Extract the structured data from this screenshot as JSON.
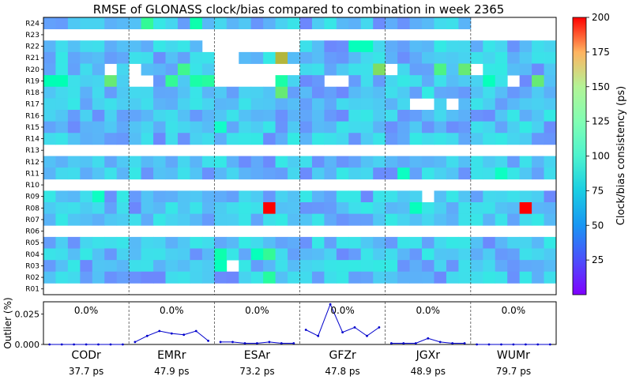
{
  "chart_data": [
    {
      "type": "heatmap",
      "title": "RMSE of GLONASS clock/bias compared to combination in week 2365",
      "satellites": [
        "R24",
        "R23",
        "R22",
        "R21",
        "R20",
        "R19",
        "R18",
        "R17",
        "R16",
        "R15",
        "R14",
        "R13",
        "R12",
        "R11",
        "R10",
        "R09",
        "R08",
        "R07",
        "R06",
        "R05",
        "R04",
        "R03",
        "R02",
        "R01"
      ],
      "empty_satellites": [
        "R23",
        "R13",
        "R10",
        "R06",
        "R01"
      ],
      "centers": [
        "CODr",
        "EMRr",
        "ESAr",
        "GFZr",
        "JGXr",
        "WUMr"
      ],
      "days_per_center": 7,
      "missing_cells": [
        [
          "R24",
          "WUMr",
          0
        ],
        [
          "R24",
          "WUMr",
          1
        ],
        [
          "R24",
          "WUMr",
          2
        ],
        [
          "R24",
          "WUMr",
          3
        ],
        [
          "R24",
          "WUMr",
          4
        ],
        [
          "R24",
          "WUMr",
          5
        ],
        [
          "R24",
          "WUMr",
          6
        ],
        [
          "R23",
          "EMRr",
          6
        ],
        [
          "R23",
          "ESAr",
          0
        ],
        [
          "R23",
          "ESAr",
          1
        ],
        [
          "R23",
          "ESAr",
          2
        ],
        [
          "R23",
          "ESAr",
          3
        ],
        [
          "R23",
          "ESAr",
          4
        ],
        [
          "R23",
          "ESAr",
          5
        ],
        [
          "R23",
          "ESAr",
          6
        ],
        [
          "R23",
          "JGXr",
          6
        ],
        [
          "R22",
          "EMRr",
          6
        ],
        [
          "R22",
          "ESAr",
          0
        ],
        [
          "R22",
          "ESAr",
          1
        ],
        [
          "R22",
          "ESAr",
          2
        ],
        [
          "R22",
          "ESAr",
          3
        ],
        [
          "R22",
          "ESAr",
          4
        ],
        [
          "R22",
          "ESAr",
          5
        ],
        [
          "R22",
          "ESAr",
          6
        ],
        [
          "R21",
          "ESAr",
          0
        ],
        [
          "R21",
          "ESAr",
          1
        ],
        [
          "R20",
          "CODr",
          5
        ],
        [
          "R20",
          "EMRr",
          0
        ],
        [
          "R20",
          "ESAr",
          0
        ],
        [
          "R20",
          "ESAr",
          1
        ],
        [
          "R20",
          "ESAr",
          2
        ],
        [
          "R20",
          "ESAr",
          3
        ],
        [
          "R20",
          "ESAr",
          4
        ],
        [
          "R20",
          "ESAr",
          5
        ],
        [
          "R20",
          "ESAr",
          6
        ],
        [
          "R20",
          "JGXr",
          0
        ],
        [
          "R20",
          "WUMr",
          0
        ],
        [
          "R19",
          "EMRr",
          0
        ],
        [
          "R19",
          "EMRr",
          1
        ],
        [
          "R19",
          "ESAr",
          0
        ],
        [
          "R19",
          "ESAr",
          1
        ],
        [
          "R19",
          "ESAr",
          2
        ],
        [
          "R19",
          "ESAr",
          3
        ],
        [
          "R19",
          "ESAr",
          4
        ],
        [
          "R19",
          "GFZr",
          2
        ],
        [
          "R19",
          "GFZr",
          3
        ],
        [
          "R19",
          "WUMr",
          3
        ],
        [
          "R17",
          "JGXr",
          2
        ],
        [
          "R17",
          "JGXr",
          3
        ],
        [
          "R17",
          "JGXr",
          5
        ],
        [
          "R09",
          "JGXr",
          3
        ],
        [
          "R03",
          "ESAr",
          1
        ]
      ],
      "highlights": [
        {
          "sat": "R24",
          "center": "EMRr",
          "day": 1,
          "value": 120
        },
        {
          "sat": "R24",
          "center": "EMRr",
          "day": 5,
          "value": 105
        },
        {
          "sat": "R22",
          "center": "GFZr",
          "day": 4,
          "value": 95
        },
        {
          "sat": "R22",
          "center": "GFZr",
          "day": 5,
          "value": 95
        },
        {
          "sat": "R21",
          "center": "ESAr",
          "day": 5,
          "value": 170
        },
        {
          "sat": "R20",
          "center": "EMRr",
          "day": 4,
          "value": 125
        },
        {
          "sat": "R20",
          "center": "GFZr",
          "day": 6,
          "value": 150
        },
        {
          "sat": "R20",
          "center": "JGXr",
          "day": 4,
          "value": 130
        },
        {
          "sat": "R20",
          "center": "JGXr",
          "day": 6,
          "value": 140
        },
        {
          "sat": "R19",
          "center": "CODr",
          "day": 0,
          "value": 100
        },
        {
          "sat": "R19",
          "center": "CODr",
          "day": 1,
          "value": 100
        },
        {
          "sat": "R19",
          "center": "CODr",
          "day": 5,
          "value": 140
        },
        {
          "sat": "R19",
          "center": "EMRr",
          "day": 3,
          "value": 120
        },
        {
          "sat": "R19",
          "center": "EMRr",
          "day": 5,
          "value": 110
        },
        {
          "sat": "R19",
          "center": "EMRr",
          "day": 6,
          "value": 115
        },
        {
          "sat": "R19",
          "center": "ESAr",
          "day": 5,
          "value": 110
        },
        {
          "sat": "R19",
          "center": "WUMr",
          "day": 1,
          "value": 95
        },
        {
          "sat": "R19",
          "center": "WUMr",
          "day": 5,
          "value": 140
        },
        {
          "sat": "R18",
          "center": "ESAr",
          "day": 5,
          "value": 140
        },
        {
          "sat": "R04",
          "center": "ESAr",
          "day": 0,
          "value": 105
        },
        {
          "sat": "R04",
          "center": "ESAr",
          "day": 3,
          "value": 95
        },
        {
          "sat": "R04",
          "center": "ESAr",
          "day": 4,
          "value": 120
        },
        {
          "sat": "R03",
          "center": "ESAr",
          "day": 0,
          "value": 95
        },
        {
          "sat": "R02",
          "center": "ESAr",
          "day": 4,
          "value": 115
        },
        {
          "sat": "R08",
          "center": "ESAr",
          "day": 4,
          "value": 200
        },
        {
          "sat": "R08",
          "center": "WUMr",
          "day": 4,
          "value": 200
        },
        {
          "sat": "R08",
          "center": "JGXr",
          "day": 2,
          "value": 95
        },
        {
          "sat": "R09",
          "center": "CODr",
          "day": 4,
          "value": 90
        },
        {
          "sat": "R11",
          "center": "JGXr",
          "day": 1,
          "value": 90
        },
        {
          "sat": "R11",
          "center": "WUMr",
          "day": 2,
          "value": 90
        },
        {
          "sat": "R15",
          "center": "ESAr",
          "day": 0,
          "value": 85
        }
      ],
      "value_range_typical": [
        15,
        60
      ],
      "colorbar": {
        "label": "Clock/bias consistency (ps)",
        "ticks": [
          25,
          50,
          75,
          100,
          125,
          150,
          175,
          200
        ],
        "range": [
          0,
          200
        ],
        "colormap": "rainbow"
      },
      "grid": false
    },
    {
      "type": "line",
      "ylabel": "Outlier (%)",
      "yticks": [
        "0.000",
        "0.025"
      ],
      "ylim": [
        0,
        0.035
      ],
      "color": "#0000cc",
      "series": [
        {
          "center": "CODr",
          "percent_label": "0.0%",
          "values": [
            0.0,
            0.0,
            0.0,
            0.0,
            0.0,
            0.0,
            0.0
          ]
        },
        {
          "center": "EMRr",
          "percent_label": "0.0%",
          "values": [
            0.002,
            0.007,
            0.011,
            0.009,
            0.008,
            0.011,
            0.003
          ]
        },
        {
          "center": "ESAr",
          "percent_label": "0.0%",
          "values": [
            0.002,
            0.002,
            0.001,
            0.001,
            0.002,
            0.001,
            0.001
          ]
        },
        {
          "center": "GFZr",
          "percent_label": "0.0%",
          "values": [
            0.012,
            0.007,
            0.033,
            0.01,
            0.014,
            0.007,
            0.014
          ]
        },
        {
          "center": "JGXr",
          "percent_label": "0.0%",
          "values": [
            0.001,
            0.001,
            0.001,
            0.005,
            0.002,
            0.001,
            0.001
          ]
        },
        {
          "center": "WUMr",
          "percent_label": "0.0%",
          "values": [
            0.0,
            0.0,
            0.0,
            0.0,
            0.0,
            0.0,
            0.0
          ]
        }
      ]
    }
  ],
  "center_summary": [
    {
      "name": "CODr",
      "rmse": "37.7 ps"
    },
    {
      "name": "EMRr",
      "rmse": "47.9 ps"
    },
    {
      "name": "ESAr",
      "rmse": "73.2 ps"
    },
    {
      "name": "GFZr",
      "rmse": "47.8 ps"
    },
    {
      "name": "JGXr",
      "rmse": "48.9 ps"
    },
    {
      "name": "WUMr",
      "rmse": "79.7 ps"
    }
  ]
}
